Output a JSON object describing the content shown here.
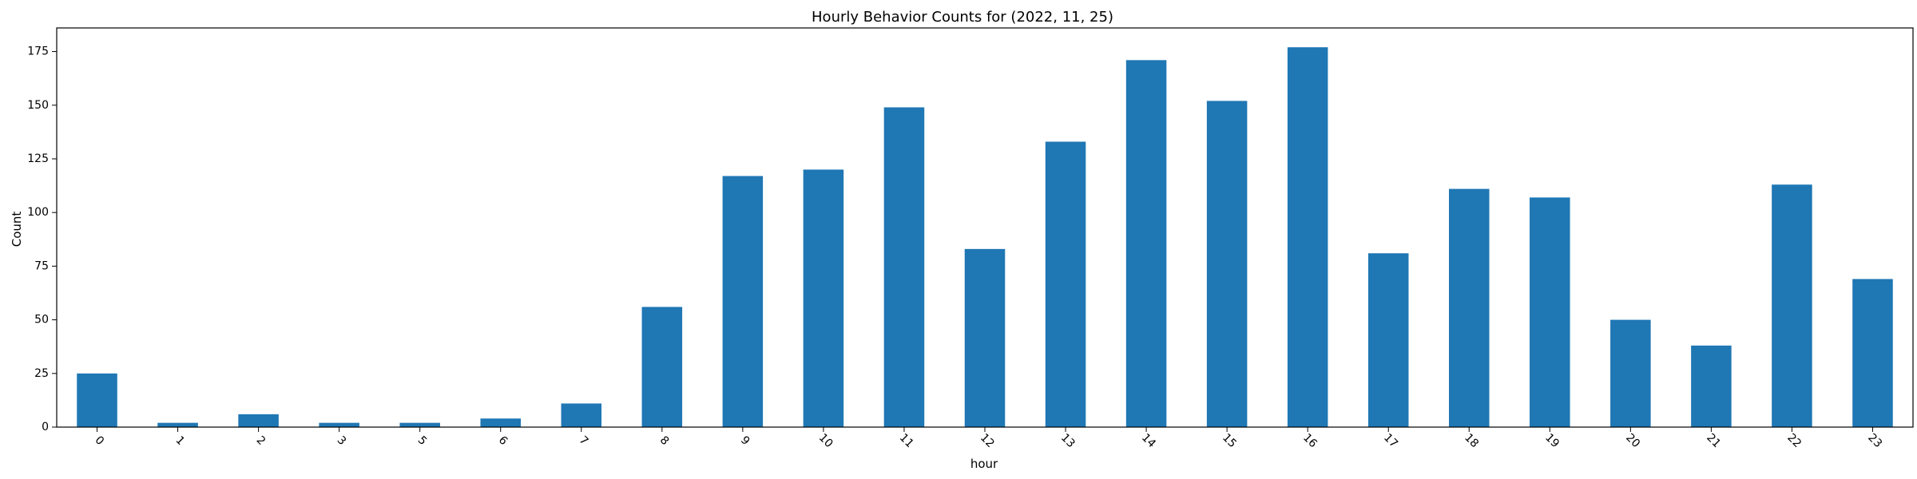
{
  "chart_data": {
    "type": "bar",
    "title": "Hourly Behavior Counts for (2022, 11, 25)",
    "xlabel": "hour",
    "ylabel": "Count",
    "categories": [
      "0",
      "1",
      "2",
      "3",
      "5",
      "6",
      "7",
      "8",
      "9",
      "10",
      "11",
      "12",
      "13",
      "14",
      "15",
      "16",
      "17",
      "18",
      "19",
      "20",
      "21",
      "22",
      "23"
    ],
    "values": [
      25,
      2,
      6,
      2,
      2,
      4,
      11,
      56,
      117,
      120,
      149,
      83,
      133,
      171,
      152,
      177,
      81,
      111,
      107,
      50,
      38,
      113,
      69
    ],
    "ylim": [
      0,
      186
    ],
    "yticks": [
      0,
      25,
      50,
      75,
      100,
      125,
      150,
      175
    ],
    "grid": false,
    "bar_color": "#1f77b4",
    "x_tick_rotation": "45deg"
  }
}
